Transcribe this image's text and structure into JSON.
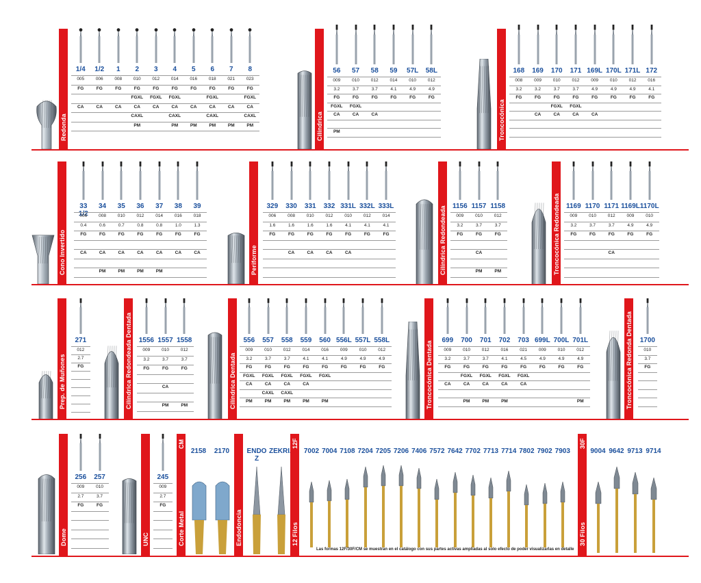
{
  "colors": {
    "brand_red": "#e0161b",
    "code_blue": "#1a4f9c",
    "steel": "#8e98a4",
    "gold": "#c9a03a"
  },
  "sections": {
    "redonda": {
      "label": "Redonda",
      "codes": [
        "1/4",
        "1/2",
        "1",
        "2",
        "3",
        "4",
        "5",
        "6",
        "7",
        "8"
      ],
      "rows": [
        [
          "005",
          "006",
          "008",
          "010",
          "012",
          "014",
          "016",
          "018",
          "021",
          "023"
        ],
        [
          "FG",
          "FG",
          "FG",
          "FG",
          "FG",
          "FG",
          "FG",
          "FG",
          "FG",
          "FG"
        ],
        [
          "",
          "",
          "",
          "FGXL",
          "FGXL",
          "FGXL",
          "",
          "FGXL",
          "",
          "FGXL"
        ],
        [
          "CA",
          "CA",
          "CA",
          "CA",
          "CA",
          "CA",
          "CA",
          "CA",
          "CA",
          "CA"
        ],
        [
          "",
          "",
          "",
          "CAXL",
          "",
          "CAXL",
          "",
          "CAXL",
          "",
          "CAXL"
        ],
        [
          "",
          "",
          "",
          "PM",
          "",
          "PM",
          "PM",
          "PM",
          "PM",
          "PM"
        ]
      ]
    },
    "cilindrica": {
      "label": "Cilíndrica",
      "codes": [
        "56",
        "57",
        "58",
        "59",
        "57L",
        "58L"
      ],
      "rows": [
        [
          "009",
          "010",
          "012",
          "014",
          "010",
          "012"
        ],
        [
          "3.2",
          "3.7",
          "3.7",
          "4.1",
          "4.9",
          "4.9"
        ],
        [
          "FG",
          "FG",
          "FG",
          "FG",
          "FG",
          "FG"
        ],
        [
          "FGXL",
          "FGXL",
          "",
          "",
          "",
          ""
        ],
        [
          "CA",
          "CA",
          "CA",
          "",
          "",
          ""
        ],
        [
          "",
          "",
          "",
          "",
          "",
          ""
        ],
        [
          "PM",
          "",
          "",
          "",
          "",
          ""
        ]
      ]
    },
    "troncoconica": {
      "label": "Troncocónica",
      "codes": [
        "168",
        "169",
        "170",
        "171",
        "169L",
        "170L",
        "171L",
        "172"
      ],
      "rows": [
        [
          "008",
          "009",
          "010",
          "012",
          "009",
          "010",
          "012",
          "016"
        ],
        [
          "3.2",
          "3.2",
          "3.7",
          "3.7",
          "4.9",
          "4.9",
          "4.9",
          "4.1"
        ],
        [
          "FG",
          "FG",
          "FG",
          "FG",
          "FG",
          "FG",
          "FG",
          "FG"
        ],
        [
          "",
          "",
          "FGXL",
          "FGXL",
          "",
          "",
          "",
          ""
        ],
        [
          "",
          "CA",
          "CA",
          "CA",
          "CA",
          "",
          "",
          ""
        ],
        [
          "",
          "",
          "",
          "",
          "",
          "",
          "",
          ""
        ],
        [
          "",
          "",
          "",
          "",
          "",
          "",
          "",
          ""
        ]
      ]
    },
    "cono_invertido": {
      "label": "Cono Invertido",
      "codes": [
        "33 1/2",
        "34",
        "35",
        "36",
        "37",
        "38",
        "39"
      ],
      "rows": [
        [
          "006",
          "008",
          "010",
          "012",
          "014",
          "016",
          "018"
        ],
        [
          "0.4",
          "0.6",
          "0.7",
          "0.8",
          "0.8",
          "1.0",
          "1.3"
        ],
        [
          "FG",
          "FG",
          "FG",
          "FG",
          "FG",
          "FG",
          "FG"
        ],
        [
          "",
          "",
          "",
          "",
          "",
          "",
          ""
        ],
        [
          "CA",
          "CA",
          "CA",
          "CA",
          "CA",
          "CA",
          "CA"
        ],
        [
          "",
          "",
          "",
          "",
          "",
          "",
          ""
        ],
        [
          "",
          "PM",
          "PM",
          "PM",
          "PM",
          "",
          ""
        ]
      ]
    },
    "periforme": {
      "label": "Periforme",
      "codes": [
        "329",
        "330",
        "331",
        "332",
        "331L",
        "332L",
        "333L"
      ],
      "rows": [
        [
          "006",
          "008",
          "010",
          "012",
          "010",
          "012",
          "014"
        ],
        [
          "1.6",
          "1.6",
          "1.6",
          "1.6",
          "4.1",
          "4.1",
          "4.1"
        ],
        [
          "FG",
          "FG",
          "FG",
          "FG",
          "FG",
          "FG",
          "FG"
        ],
        [
          "",
          "",
          "",
          "",
          "",
          "",
          ""
        ],
        [
          "",
          "CA",
          "CA",
          "CA",
          "CA",
          "",
          ""
        ],
        [
          "",
          "",
          "",
          "",
          "",
          "",
          ""
        ],
        [
          "",
          "",
          "",
          "",
          "",
          "",
          ""
        ]
      ]
    },
    "cil_redondeada": {
      "label": "Cilíndrica Redondeada",
      "codes": [
        "1156",
        "1157",
        "1158"
      ],
      "rows": [
        [
          "009",
          "010",
          "012"
        ],
        [
          "3.2",
          "3.7",
          "3.7"
        ],
        [
          "FG",
          "FG",
          "FG"
        ],
        [
          "",
          "",
          ""
        ],
        [
          "",
          "CA",
          ""
        ],
        [
          "",
          "",
          ""
        ],
        [
          "",
          "PM",
          "PM"
        ]
      ]
    },
    "tronco_redondeada": {
      "label": "Troncocónica Redondeada",
      "codes": [
        "1169",
        "1170",
        "1171",
        "1169L",
        "1170L"
      ],
      "rows": [
        [
          "009",
          "010",
          "012",
          "009",
          "010"
        ],
        [
          "3.2",
          "3.7",
          "3.7",
          "4.9",
          "4.9"
        ],
        [
          "FG",
          "FG",
          "FG",
          "FG",
          "FG"
        ],
        [
          "",
          "",
          "",
          "",
          ""
        ],
        [
          "",
          "",
          "CA",
          "",
          ""
        ],
        [
          "",
          "",
          "",
          "",
          ""
        ],
        [
          "",
          "",
          "",
          "",
          ""
        ]
      ]
    },
    "prep_munones": {
      "label": "Prep. de Muñones",
      "codes": [
        "271"
      ],
      "rows": [
        [
          "012"
        ],
        [
          "2.7"
        ],
        [
          "FG"
        ],
        [
          ""
        ],
        [
          ""
        ],
        [
          ""
        ],
        [
          ""
        ],
        [
          ""
        ]
      ]
    },
    "cil_red_dentada": {
      "label": "Cilíndrica Redondeada Dentada",
      "codes": [
        "1556",
        "1557",
        "1558"
      ],
      "rows": [
        [
          "009",
          "010",
          "012"
        ],
        [
          "3.2",
          "3.7",
          "3.7"
        ],
        [
          "FG",
          "FG",
          "FG"
        ],
        [
          "",
          "",
          ""
        ],
        [
          "",
          "CA",
          ""
        ],
        [
          "",
          "",
          ""
        ],
        [
          "",
          "PM",
          "PM"
        ]
      ]
    },
    "cil_dentada": {
      "label": "Cilíndrica Dentada",
      "codes": [
        "556",
        "557",
        "558",
        "559",
        "560",
        "556L",
        "557L",
        "558L"
      ],
      "rows": [
        [
          "009",
          "010",
          "012",
          "014",
          "016",
          "009",
          "010",
          "012"
        ],
        [
          "3.2",
          "3.7",
          "3.7",
          "4.1",
          "4.1",
          "4.9",
          "4.9",
          "4.9"
        ],
        [
          "FG",
          "FG",
          "FG",
          "FG",
          "FG",
          "FG",
          "FG",
          "FG"
        ],
        [
          "FGXL",
          "FGXL",
          "FGXL",
          "FGXL",
          "FGXL",
          "",
          "",
          ""
        ],
        [
          "CA",
          "CA",
          "CA",
          "CA",
          "",
          "",
          "",
          ""
        ],
        [
          "",
          "CAXL",
          "CAXL",
          "",
          "",
          "",
          "",
          ""
        ],
        [
          "PM",
          "PM",
          "PM",
          "PM",
          "PM",
          "",
          "",
          ""
        ]
      ]
    },
    "tronco_dentada": {
      "label": "Troncocónica Dentada",
      "codes": [
        "699",
        "700",
        "701",
        "702",
        "703",
        "699L",
        "700L",
        "701L"
      ],
      "rows": [
        [
          "009",
          "010",
          "012",
          "016",
          "021",
          "009",
          "010",
          "012"
        ],
        [
          "3.2",
          "3.7",
          "3.7",
          "4.1",
          "4.5",
          "4.9",
          "4.9",
          "4.9"
        ],
        [
          "FG",
          "FG",
          "FG",
          "FG",
          "FG",
          "FG",
          "FG",
          "FG"
        ],
        [
          "",
          "FGXL",
          "FGXL",
          "FGXL",
          "FGXL",
          "",
          "",
          ""
        ],
        [
          "CA",
          "CA",
          "CA",
          "CA",
          "CA",
          "",
          "",
          ""
        ],
        [
          "",
          "",
          "",
          "",
          "",
          "",
          "",
          ""
        ],
        [
          "",
          "PM",
          "PM",
          "PM",
          "",
          "",
          "",
          "PM"
        ]
      ]
    },
    "tronco_red_dentada": {
      "label": "Troncocónica Redonda Dentada",
      "codes": [
        "1700"
      ],
      "rows": [
        [
          "010"
        ],
        [
          "3.7"
        ],
        [
          "FG"
        ],
        [
          ""
        ],
        [
          ""
        ],
        [
          ""
        ],
        [
          ""
        ]
      ]
    },
    "dome": {
      "label": "Dome",
      "codes": [
        "256",
        "257"
      ],
      "rows": [
        [
          "009",
          "010"
        ],
        [
          "2.7",
          "3.7"
        ],
        [
          "FG",
          "FG"
        ],
        [
          "",
          ""
        ],
        [
          "",
          ""
        ],
        [
          "",
          ""
        ],
        [
          "",
          ""
        ]
      ]
    },
    "unc": {
      "label": "UNC",
      "codes": [
        "245"
      ],
      "rows": [
        [
          "009"
        ],
        [
          "2.7"
        ],
        [
          "FG"
        ],
        [
          ""
        ],
        [
          ""
        ],
        [
          ""
        ],
        [
          ""
        ]
      ]
    },
    "corte_metal": {
      "label": "Corte Metal",
      "tag": "CM",
      "codes": [
        "2158",
        "2170"
      ]
    },
    "endodoncia": {
      "label": "Endodoncia",
      "codes": [
        "ENDO Z",
        "ZEKRIA"
      ]
    },
    "filos12": {
      "label": "12 Filos",
      "tag": "12F",
      "codes": [
        "7002",
        "7004",
        "7108",
        "7204",
        "7205",
        "7206",
        "7406",
        "7572",
        "7642",
        "7702",
        "7713",
        "7714",
        "7802",
        "7902",
        "7903"
      ],
      "note": "Las formas 12F/30F/CM se muestran en el catálogo con sus partes activas ampliadas al solo efecto de poder visualizarlas en detalle"
    },
    "filos30": {
      "label": "30 Filos",
      "tag": "30F",
      "codes": [
        "9004",
        "9642",
        "9713",
        "9714"
      ]
    }
  }
}
